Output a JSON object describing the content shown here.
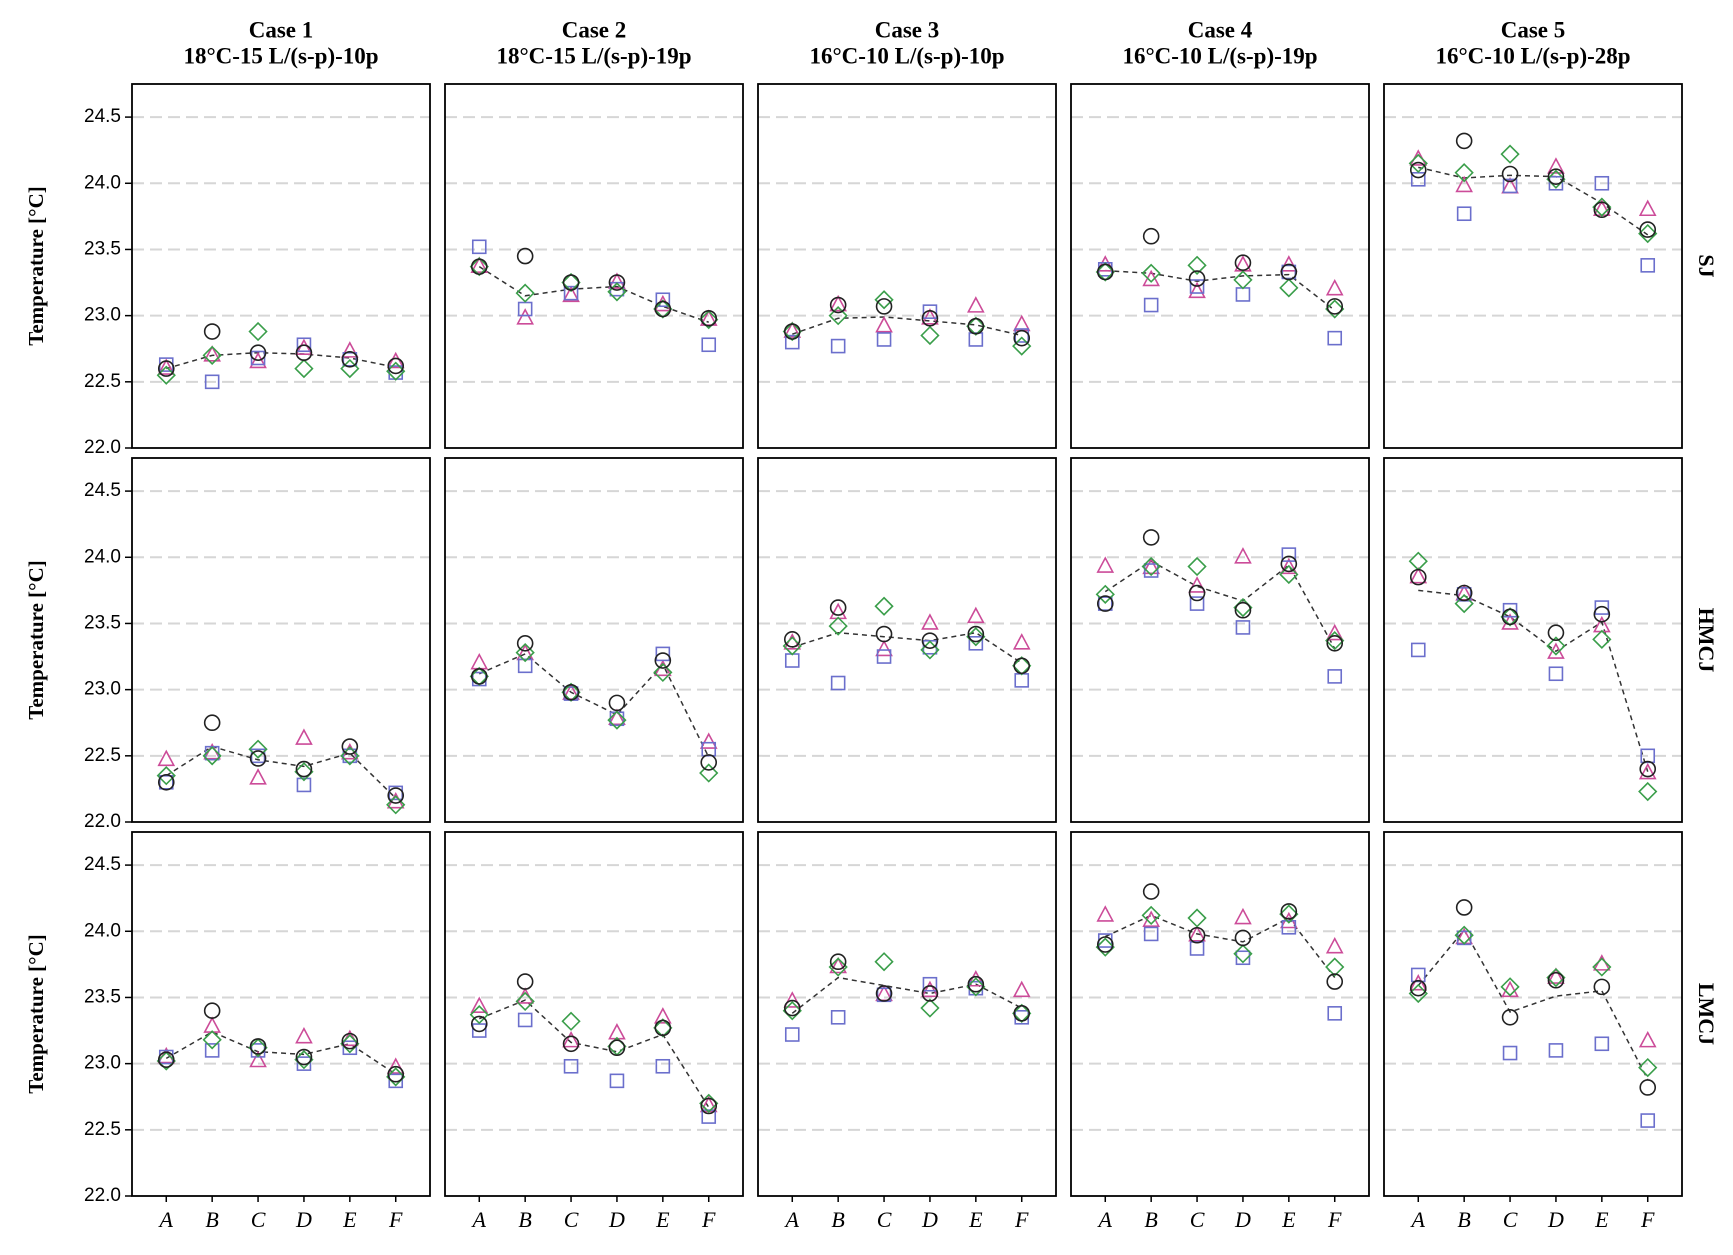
{
  "chart_data": {
    "type": "scatter",
    "ylabel": "Temperature [°C]",
    "ylim": [
      22,
      24.75
    ],
    "yticks": [
      {
        "value": 22,
        "label": "22.0"
      },
      22.5,
      {
        "value": 23,
        "label": "23.0"
      },
      23.5,
      {
        "value": 24,
        "label": "24.0"
      },
      24.5
    ],
    "grid": true,
    "categories": [
      "A",
      "B",
      "C",
      "D",
      "E",
      "F"
    ],
    "markers": [
      {
        "shape": "triangle",
        "color": "#cc4c99"
      },
      {
        "shape": "square",
        "color": "#6b6fcc"
      },
      {
        "shape": "diamond",
        "color": "#3a9e4a"
      },
      {
        "shape": "circle",
        "color": "#222222"
      }
    ],
    "line_color": "#333333",
    "line_style": "dashed",
    "columns": [
      {
        "title": "Case 1",
        "subtitle": "18°C-15 L/(s-p)-10p"
      },
      {
        "title": "Case 2",
        "subtitle": "18°C-15 L/(s-p)-19p"
      },
      {
        "title": "Case 3",
        "subtitle": "16°C-10 L/(s-p)-10p"
      },
      {
        "title": "Case 4",
        "subtitle": "16°C-10 L/(s-p)-19p"
      },
      {
        "title": "Case 5",
        "subtitle": "16°C-10 L/(s-p)-28p"
      }
    ],
    "rows": [
      {
        "label": "SJ",
        "panels": [
          {
            "series": [
              {
                "values": [
                  22.6,
                  22.7,
                  22.65,
                  22.75,
                  22.73,
                  22.65
                ]
              },
              {
                "values": [
                  22.63,
                  22.5,
                  22.68,
                  22.78,
                  22.67,
                  22.57
                ]
              },
              {
                "values": [
                  22.55,
                  22.7,
                  22.88,
                  22.6,
                  22.6,
                  22.58
                ]
              },
              {
                "values": [
                  22.6,
                  22.88,
                  22.72,
                  22.72,
                  22.67,
                  22.62
                ]
              }
            ],
            "line": [
              22.6,
              22.7,
              22.72,
              22.71,
              22.68,
              22.61
            ]
          },
          {
            "series": [
              {
                "values": [
                  23.37,
                  22.98,
                  23.15,
                  23.25,
                  23.08,
                  22.97
                ]
              },
              {
                "values": [
                  23.52,
                  23.05,
                  23.17,
                  23.2,
                  23.12,
                  22.78
                ]
              },
              {
                "values": [
                  23.37,
                  23.17,
                  23.25,
                  23.18,
                  23.05,
                  22.97
                ]
              },
              {
                "values": [
                  23.37,
                  23.45,
                  23.25,
                  23.25,
                  23.05,
                  22.98
                ]
              }
            ],
            "line": [
              23.37,
              23.15,
              23.2,
              23.22,
              23.07,
              22.95
            ]
          },
          {
            "series": [
              {
                "values": [
                  22.88,
                  23.08,
                  22.92,
                  22.98,
                  23.07,
                  22.93
                ]
              },
              {
                "values": [
                  22.8,
                  22.77,
                  22.82,
                  23.03,
                  22.82,
                  22.85
                ]
              },
              {
                "values": [
                  22.88,
                  23.0,
                  23.12,
                  22.85,
                  22.92,
                  22.77
                ]
              },
              {
                "values": [
                  22.88,
                  23.08,
                  23.07,
                  22.98,
                  22.92,
                  22.83
                ]
              }
            ],
            "line": [
              22.86,
              22.98,
              22.99,
              22.96,
              22.93,
              22.85
            ]
          },
          {
            "series": [
              {
                "values": [
                  23.38,
                  23.27,
                  23.18,
                  23.38,
                  23.38,
                  23.2
                ]
              },
              {
                "values": [
                  23.35,
                  23.08,
                  23.22,
                  23.16,
                  23.33,
                  22.83
                ]
              },
              {
                "values": [
                  23.33,
                  23.32,
                  23.38,
                  23.27,
                  23.21,
                  23.05
                ]
              },
              {
                "values": [
                  23.33,
                  23.6,
                  23.28,
                  23.4,
                  23.33,
                  23.07
                ]
              }
            ],
            "line": [
              23.34,
              23.32,
              23.26,
              23.3,
              23.31,
              23.04
            ]
          },
          {
            "series": [
              {
                "values": [
                  24.18,
                  23.98,
                  23.97,
                  24.12,
                  23.8,
                  23.8
                ]
              },
              {
                "values": [
                  24.03,
                  23.77,
                  23.98,
                  24.0,
                  24.0,
                  23.38
                ]
              },
              {
                "values": [
                  24.15,
                  24.08,
                  24.22,
                  24.03,
                  23.82,
                  23.62
                ]
              },
              {
                "values": [
                  24.1,
                  24.32,
                  24.07,
                  24.05,
                  23.8,
                  23.65
                ]
              }
            ],
            "line": [
              24.12,
              24.04,
              24.06,
              24.05,
              23.85,
              23.61
            ]
          }
        ]
      },
      {
        "label": "HMCJ",
        "panels": [
          {
            "series": [
              {
                "values": [
                  22.47,
                  22.52,
                  22.33,
                  22.63,
                  22.52,
                  22.15
                ]
              },
              {
                "values": [
                  22.3,
                  22.52,
                  22.5,
                  22.28,
                  22.5,
                  22.22
                ]
              },
              {
                "values": [
                  22.35,
                  22.5,
                  22.55,
                  22.38,
                  22.5,
                  22.13
                ]
              },
              {
                "values": [
                  22.3,
                  22.75,
                  22.48,
                  22.4,
                  22.57,
                  22.2
                ]
              }
            ],
            "line": [
              22.35,
              22.57,
              22.47,
              22.42,
              22.52,
              22.18
            ]
          },
          {
            "series": [
              {
                "values": [
                  23.2,
                  23.27,
                  22.97,
                  22.78,
                  23.15,
                  22.6
                ]
              },
              {
                "values": [
                  23.08,
                  23.18,
                  22.97,
                  22.78,
                  23.27,
                  22.55
                ]
              },
              {
                "values": [
                  23.1,
                  23.28,
                  22.98,
                  22.77,
                  23.13,
                  22.37
                ]
              },
              {
                "values": [
                  23.1,
                  23.35,
                  22.98,
                  22.9,
                  23.22,
                  22.45
                ]
              }
            ],
            "line": [
              23.12,
              23.27,
              22.98,
              22.81,
              23.19,
              22.49
            ]
          },
          {
            "series": [
              {
                "values": [
                  23.35,
                  23.58,
                  23.3,
                  23.5,
                  23.55,
                  23.35
                ]
              },
              {
                "values": [
                  23.22,
                  23.05,
                  23.25,
                  23.32,
                  23.35,
                  23.07
                ]
              },
              {
                "values": [
                  23.33,
                  23.48,
                  23.63,
                  23.3,
                  23.4,
                  23.18
                ]
              },
              {
                "values": [
                  23.38,
                  23.62,
                  23.42,
                  23.37,
                  23.42,
                  23.18
                ]
              }
            ],
            "line": [
              23.32,
              23.43,
              23.4,
              23.37,
              23.43,
              23.2
            ]
          },
          {
            "series": [
              {
                "values": [
                  23.93,
                  23.92,
                  23.78,
                  24.0,
                  23.92,
                  23.42
                ]
              },
              {
                "values": [
                  23.65,
                  23.9,
                  23.65,
                  23.47,
                  24.02,
                  23.1
                ]
              },
              {
                "values": [
                  23.72,
                  23.93,
                  23.93,
                  23.62,
                  23.87,
                  23.37
                ]
              },
              {
                "values": [
                  23.65,
                  24.15,
                  23.73,
                  23.6,
                  23.95,
                  23.35
                ]
              }
            ],
            "line": [
              23.74,
              23.97,
              23.78,
              23.67,
              23.94,
              23.31
            ]
          },
          {
            "series": [
              {
                "values": [
                  23.85,
                  23.72,
                  23.5,
                  23.28,
                  23.48,
                  22.37
                ]
              },
              {
                "values": [
                  23.3,
                  23.72,
                  23.6,
                  23.12,
                  23.62,
                  22.5
                ]
              },
              {
                "values": [
                  23.97,
                  23.65,
                  23.55,
                  23.33,
                  23.38,
                  22.23
                ]
              },
              {
                "values": [
                  23.85,
                  23.73,
                  23.55,
                  23.43,
                  23.57,
                  22.4
                ]
              }
            ],
            "line": [
              23.75,
              23.71,
              23.55,
              23.29,
              23.51,
              22.38
            ]
          }
        ]
      },
      {
        "label": "LMCJ",
        "panels": [
          {
            "series": [
              {
                "values": [
                  23.05,
                  23.28,
                  23.02,
                  23.2,
                  23.18,
                  22.97
                ]
              },
              {
                "values": [
                  23.05,
                  23.1,
                  23.1,
                  23.0,
                  23.12,
                  22.87
                ]
              },
              {
                "values": [
                  23.02,
                  23.18,
                  23.12,
                  23.03,
                  23.15,
                  22.9
                ]
              },
              {
                "values": [
                  23.03,
                  23.4,
                  23.13,
                  23.05,
                  23.17,
                  22.92
                ]
              }
            ],
            "line": [
              23.04,
              23.24,
              23.09,
              23.07,
              23.15,
              22.92
            ]
          },
          {
            "series": [
              {
                "values": [
                  23.43,
                  23.5,
                  23.17,
                  23.23,
                  23.35,
                  22.68
                ]
              },
              {
                "values": [
                  23.25,
                  23.33,
                  22.98,
                  22.87,
                  22.98,
                  22.6
                ]
              },
              {
                "values": [
                  23.37,
                  23.47,
                  23.32,
                  23.13,
                  23.27,
                  22.7
                ]
              },
              {
                "values": [
                  23.3,
                  23.62,
                  23.15,
                  23.12,
                  23.27,
                  22.68
                ]
              }
            ],
            "line": [
              23.34,
              23.48,
              23.16,
              23.09,
              23.22,
              22.67
            ]
          },
          {
            "series": [
              {
                "values": [
                  23.47,
                  23.73,
                  23.52,
                  23.55,
                  23.63,
                  23.55
                ]
              },
              {
                "values": [
                  23.22,
                  23.35,
                  23.52,
                  23.6,
                  23.57,
                  23.35
                ]
              },
              {
                "values": [
                  23.4,
                  23.73,
                  23.77,
                  23.42,
                  23.58,
                  23.38
                ]
              },
              {
                "values": [
                  23.42,
                  23.77,
                  23.53,
                  23.53,
                  23.6,
                  23.38
                ]
              }
            ],
            "line": [
              23.38,
              23.65,
              23.59,
              23.53,
              23.6,
              23.42
            ]
          },
          {
            "series": [
              {
                "values": [
                  24.12,
                  24.08,
                  23.97,
                  24.1,
                  24.07,
                  23.88
                ]
              },
              {
                "values": [
                  23.93,
                  23.98,
                  23.87,
                  23.8,
                  24.03,
                  23.38
                ]
              },
              {
                "values": [
                  23.88,
                  24.12,
                  24.1,
                  23.83,
                  24.13,
                  23.73
                ]
              },
              {
                "values": [
                  23.9,
                  24.3,
                  23.97,
                  23.95,
                  24.15,
                  23.62
                ]
              }
            ],
            "line": [
              23.96,
              24.12,
              23.98,
              23.92,
              24.1,
              23.65
            ]
          },
          {
            "series": [
              {
                "values": [
                  23.6,
                  23.95,
                  23.55,
                  23.65,
                  23.75,
                  23.17
                ]
              },
              {
                "values": [
                  23.67,
                  23.95,
                  23.08,
                  23.1,
                  23.15,
                  22.57
                ]
              },
              {
                "values": [
                  23.53,
                  23.97,
                  23.58,
                  23.65,
                  23.73,
                  22.97
                ]
              },
              {
                "values": [
                  23.57,
                  24.18,
                  23.35,
                  23.63,
                  23.58,
                  22.82
                ]
              }
            ],
            "line": [
              23.59,
              24.01,
              23.39,
              23.51,
              23.55,
              22.88
            ]
          }
        ]
      }
    ]
  }
}
